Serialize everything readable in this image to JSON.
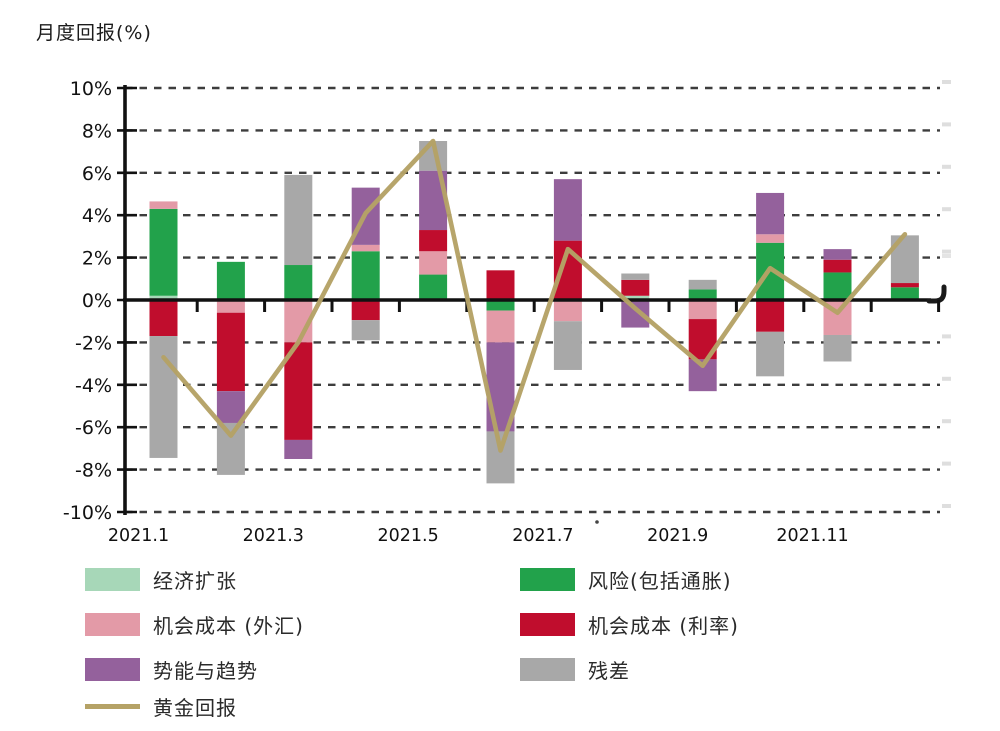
{
  "page": {
    "background": "#ffffff"
  },
  "chart_data": {
    "type": "bar",
    "subtype": "stacked-bar-with-line",
    "title": "月度回报(%)",
    "y_axis": {
      "range": [
        -10,
        10
      ],
      "grid": "dashed",
      "ticks": [
        {
          "label": "10%",
          "value": 10
        },
        {
          "label": "8%",
          "value": 8
        },
        {
          "label": "6%",
          "value": 6
        },
        {
          "label": "4%",
          "value": 4
        },
        {
          "label": "2%",
          "value": 2
        },
        {
          "label": "0%",
          "value": 0
        },
        {
          "label": "-2%",
          "value": -2
        },
        {
          "label": "-4%",
          "value": -4
        },
        {
          "label": "-6%",
          "value": -6
        },
        {
          "label": "-8%",
          "value": -8
        },
        {
          "label": "-10%",
          "value": -10
        }
      ]
    },
    "x_axis": {
      "tick_labels": [
        {
          "label": "2021.1",
          "month_index": 0
        },
        {
          "label": "2021.3",
          "month_index": 2
        },
        {
          "label": "2021.5",
          "month_index": 4
        },
        {
          "label": "2021.7",
          "month_index": 6
        },
        {
          "label": "2021.9",
          "month_index": 8
        },
        {
          "label": "2021.11",
          "month_index": 10
        }
      ]
    },
    "months": [
      "2021.1",
      "2021.2",
      "2021.3",
      "2021.4",
      "2021.5",
      "2021.6",
      "2021.7",
      "2021.8",
      "2021.9",
      "2021.10",
      "2021.11",
      "2021.12"
    ],
    "components": [
      {
        "key": "expansion",
        "label": "经济扩张",
        "color": "#a7d7b8"
      },
      {
        "key": "risk",
        "label": "风险(包括通胀)",
        "color": "#22a24b"
      },
      {
        "key": "opp_fx",
        "label": "机会成本 (外汇)",
        "color": "#e39aa7"
      },
      {
        "key": "opp_rates",
        "label": "机会成本 (利率)",
        "color": "#c00d2d"
      },
      {
        "key": "momentum",
        "label": "势能与趋势",
        "color": "#94619c"
      },
      {
        "key": "residual",
        "label": "残差",
        "color": "#a8a8a8"
      }
    ],
    "line": {
      "key": "gold_return",
      "label": "黄金回报",
      "color": "#b5a266",
      "values": [
        -2.7,
        -6.4,
        -2.0,
        4.1,
        7.5,
        -7.1,
        2.4,
        -0.4,
        -3.1,
        1.5,
        -0.6,
        3.1
      ]
    },
    "bars": [
      {
        "month": "2021.1",
        "segments": [
          {
            "component": "expansion",
            "value": 0.2
          },
          {
            "component": "risk",
            "value": 4.1
          },
          {
            "component": "opp_fx",
            "value": 0.35
          },
          {
            "component": "opp_rates",
            "value": -1.7
          },
          {
            "component": "residual",
            "value": -5.75
          }
        ]
      },
      {
        "month": "2021.2",
        "segments": [
          {
            "component": "risk",
            "value": 1.8
          },
          {
            "component": "opp_fx",
            "value": -0.6
          },
          {
            "component": "opp_rates",
            "value": -3.7
          },
          {
            "component": "momentum",
            "value": -1.5
          },
          {
            "component": "residual",
            "value": -2.45
          }
        ]
      },
      {
        "month": "2021.3",
        "segments": [
          {
            "component": "risk",
            "value": 1.65
          },
          {
            "component": "residual",
            "value": 4.25
          },
          {
            "component": "opp_fx",
            "value": -2.0
          },
          {
            "component": "opp_rates",
            "value": -4.6
          },
          {
            "component": "momentum",
            "value": -0.9
          }
        ]
      },
      {
        "month": "2021.4",
        "segments": [
          {
            "component": "risk",
            "value": 2.3
          },
          {
            "component": "opp_fx",
            "value": 0.3
          },
          {
            "component": "momentum",
            "value": 2.7
          },
          {
            "component": "opp_rates",
            "value": -0.95
          },
          {
            "component": "residual",
            "value": -0.95
          }
        ]
      },
      {
        "month": "2021.5",
        "segments": [
          {
            "component": "risk",
            "value": 1.2
          },
          {
            "component": "opp_fx",
            "value": 1.1
          },
          {
            "component": "opp_rates",
            "value": 1.0
          },
          {
            "component": "momentum",
            "value": 2.8
          },
          {
            "component": "residual",
            "value": 1.4
          }
        ]
      },
      {
        "month": "2021.6",
        "segments": [
          {
            "component": "opp_rates",
            "value": 1.4
          },
          {
            "component": "risk",
            "value": -0.5
          },
          {
            "component": "opp_fx",
            "value": -1.5
          },
          {
            "component": "momentum",
            "value": -4.2
          },
          {
            "component": "residual",
            "value": -2.45
          }
        ]
      },
      {
        "month": "2021.7",
        "segments": [
          {
            "component": "opp_rates",
            "value": 2.8
          },
          {
            "component": "momentum",
            "value": 2.9
          },
          {
            "component": "opp_fx",
            "value": -1.0
          },
          {
            "component": "residual",
            "value": -2.3
          }
        ]
      },
      {
        "month": "2021.8",
        "segments": [
          {
            "component": "expansion",
            "value": 0.2
          },
          {
            "component": "opp_rates",
            "value": 0.75
          },
          {
            "component": "residual",
            "value": 0.3
          },
          {
            "component": "momentum",
            "value": -1.3
          }
        ]
      },
      {
        "month": "2021.9",
        "segments": [
          {
            "component": "risk",
            "value": 0.5
          },
          {
            "component": "residual",
            "value": 0.45
          },
          {
            "component": "opp_fx",
            "value": -0.9
          },
          {
            "component": "opp_rates",
            "value": -1.9
          },
          {
            "component": "momentum",
            "value": -1.5
          }
        ]
      },
      {
        "month": "2021.10",
        "segments": [
          {
            "component": "risk",
            "value": 2.7
          },
          {
            "component": "opp_fx",
            "value": 0.4
          },
          {
            "component": "momentum",
            "value": 1.95
          },
          {
            "component": "opp_rates",
            "value": -1.5
          },
          {
            "component": "residual",
            "value": -2.1
          }
        ]
      },
      {
        "month": "2021.11",
        "segments": [
          {
            "component": "risk",
            "value": 1.3
          },
          {
            "component": "opp_rates",
            "value": 0.6
          },
          {
            "component": "momentum",
            "value": 0.5
          },
          {
            "component": "opp_fx",
            "value": -1.65
          },
          {
            "component": "residual",
            "value": -1.25
          }
        ]
      },
      {
        "month": "2021.12",
        "segments": [
          {
            "component": "risk",
            "value": 0.6
          },
          {
            "component": "opp_rates",
            "value": 0.2
          },
          {
            "component": "residual",
            "value": 2.25
          }
        ]
      }
    ]
  }
}
